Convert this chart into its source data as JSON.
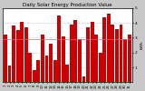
{
  "title": "Daily Solar Energy Production Value",
  "subtitle": "kWh",
  "bar_color": "#cc0000",
  "avg_line_color": "#888888",
  "background_color": "#c8c8c8",
  "plot_bg_color": "#ffffff",
  "grid_color": "#888888",
  "values": [
    3.2,
    1.1,
    3.8,
    3.5,
    4.1,
    3.7,
    2.0,
    0.8,
    1.5,
    3.2,
    1.8,
    2.6,
    1.5,
    4.5,
    3.1,
    1.2,
    3.9,
    4.2,
    2.9,
    0.4,
    3.7,
    4.1,
    3.2,
    2.0,
    4.4,
    4.6,
    3.9,
    3.6,
    3.9,
    2.9,
    3.2
  ],
  "avg_value": 2.9,
  "ylim": [
    0,
    5
  ],
  "yticks": [
    1,
    2,
    3,
    4,
    5
  ],
  "ytick_labels": [
    "1",
    "2",
    "3",
    "4",
    "5"
  ],
  "n_bars": 31,
  "title_fontsize": 4.0,
  "tick_fontsize": 3.2,
  "label_fontsize": 3.2,
  "figsize": [
    1.6,
    1.0
  ],
  "dpi": 100
}
